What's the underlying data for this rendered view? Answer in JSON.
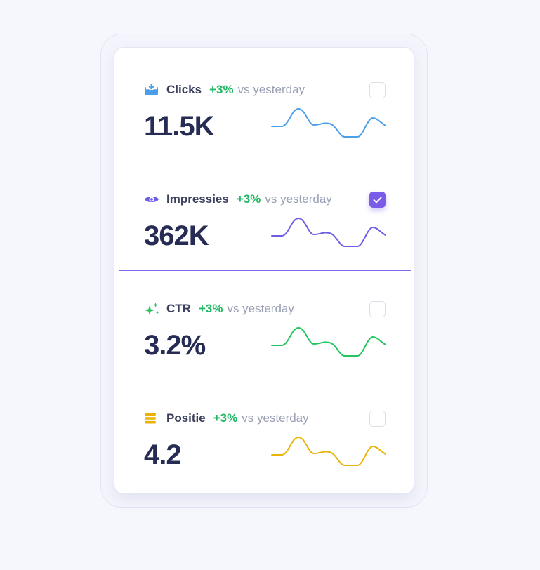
{
  "metrics": [
    {
      "name": "Clicks",
      "change": "+3%",
      "compare": "vs yesterday",
      "value": "11.5K",
      "icon": "inbox-download-icon",
      "color": "#4a9eea",
      "checked": false
    },
    {
      "name": "Impressies",
      "change": "+3%",
      "compare": "vs yesterday",
      "value": "362K",
      "icon": "eye-icon",
      "color": "#6d5ce6",
      "checked": true
    },
    {
      "name": "CTR",
      "change": "+3%",
      "compare": "vs yesterday",
      "value": "3.2%",
      "icon": "sparkles-icon",
      "color": "#22c55e",
      "checked": false
    },
    {
      "name": "Positie",
      "change": "+3%",
      "compare": "vs yesterday",
      "value": "4.2",
      "icon": "stacked-bars-icon",
      "color": "#eab308",
      "checked": false
    }
  ],
  "change_color": "#22b865"
}
